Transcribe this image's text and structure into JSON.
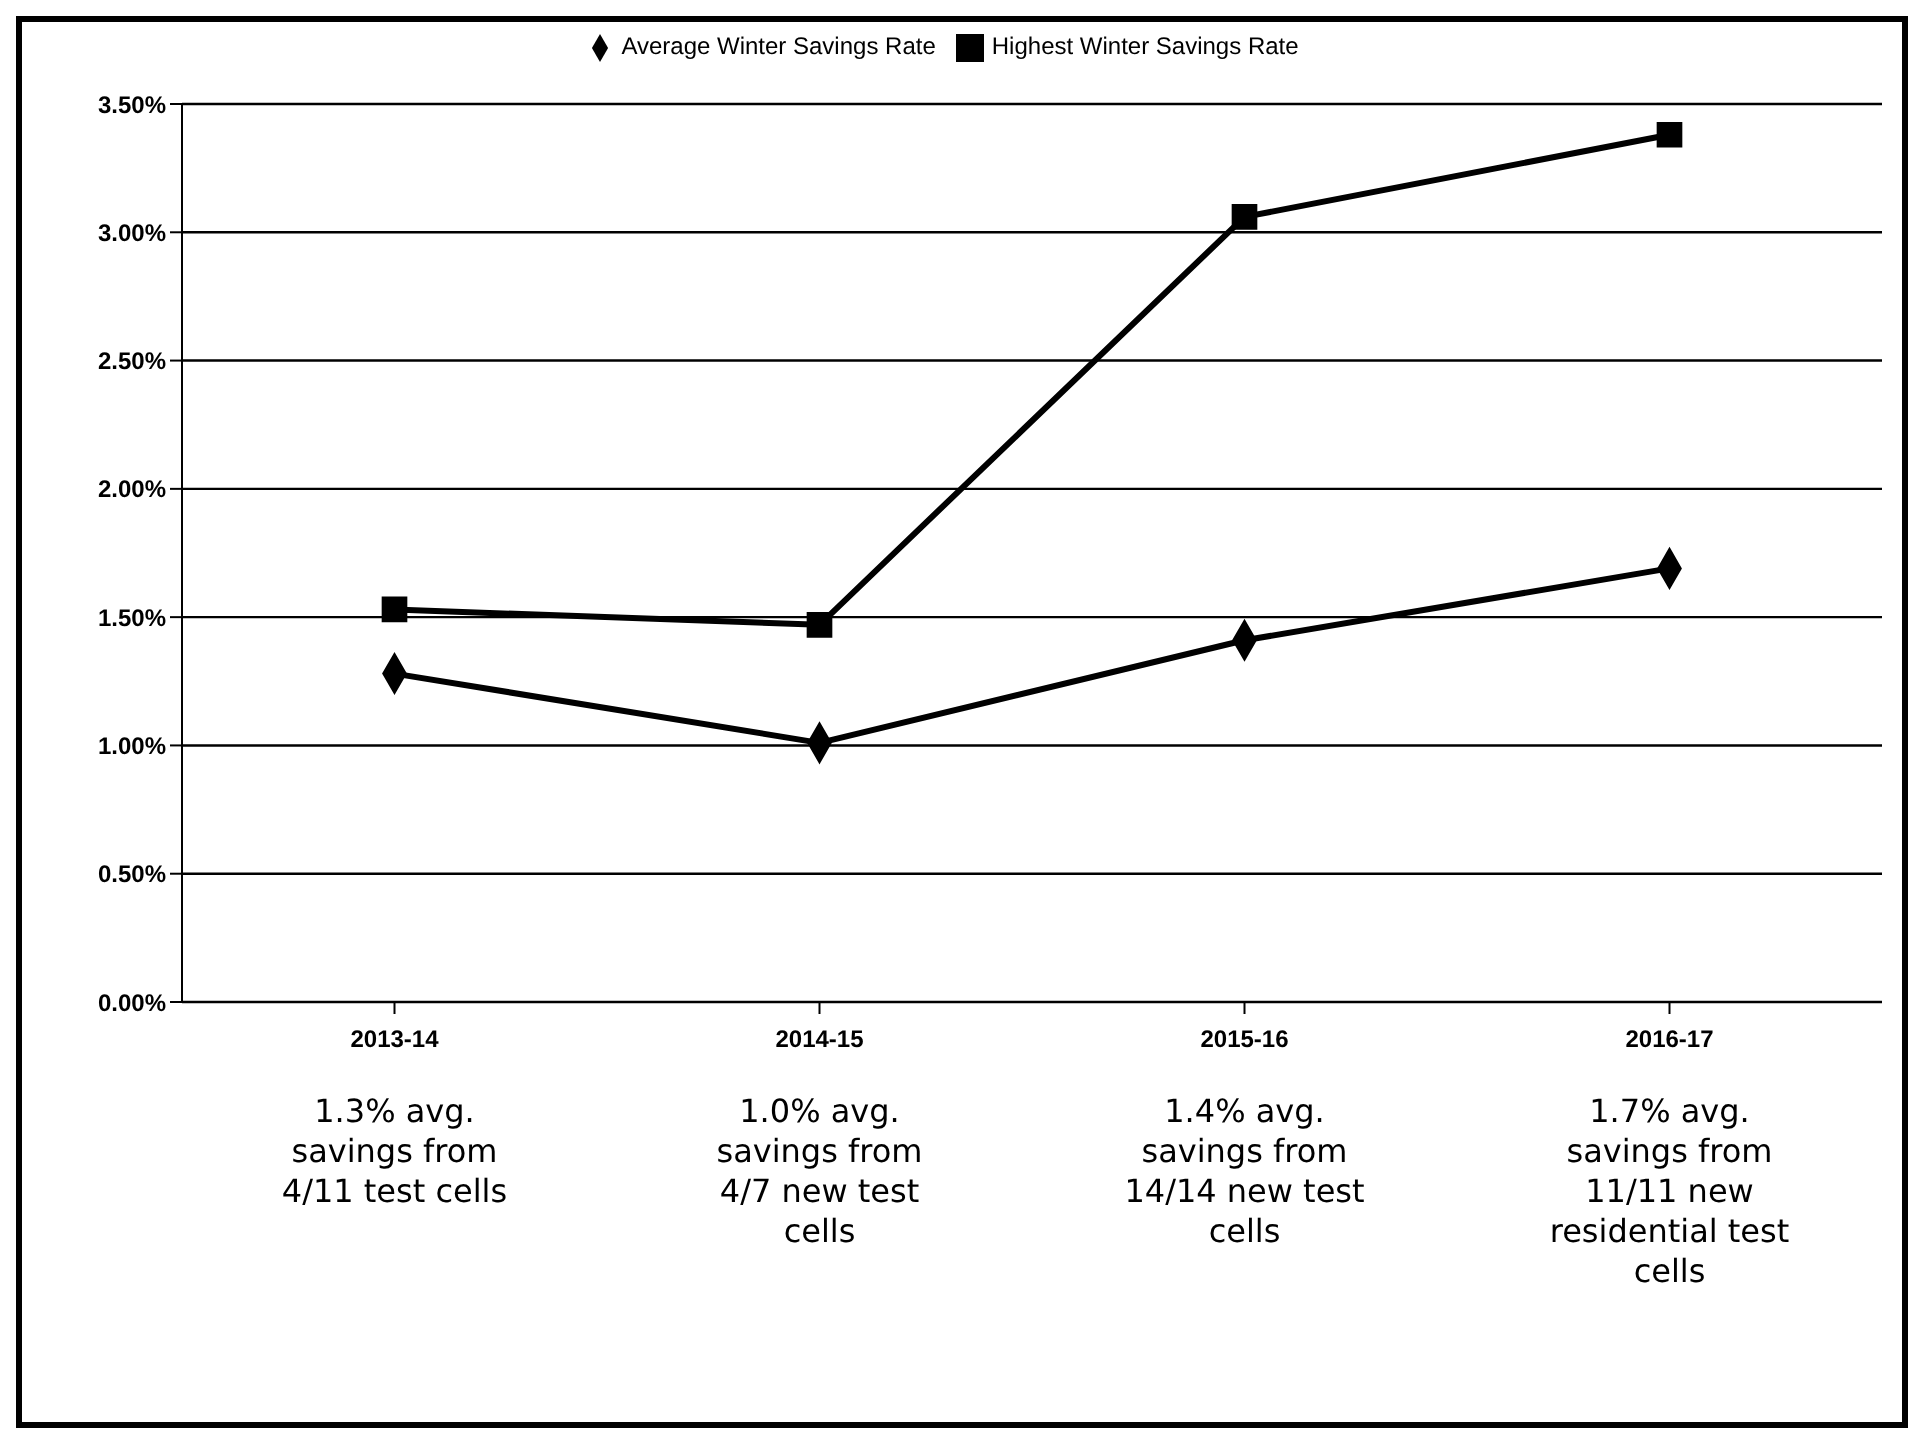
{
  "chart_data": {
    "type": "line",
    "categories": [
      "2013-14",
      "2014-15",
      "2015-16",
      "2016-17"
    ],
    "series": [
      {
        "name": "Average Winter Savings Rate",
        "color": "#000000",
        "marker": "diamond",
        "values": [
          1.28,
          1.01,
          1.41,
          1.69
        ]
      },
      {
        "name": "Highest Winter Savings Rate",
        "color": "#000000",
        "marker": "square",
        "values": [
          1.53,
          1.47,
          3.06,
          3.38
        ]
      }
    ],
    "ylim": [
      0,
      3.5
    ],
    "yticks": [
      {
        "value": 0,
        "label": "0.00%"
      },
      {
        "value": 0.5,
        "label": "0.50%"
      },
      {
        "value": 1,
        "label": "1.00%"
      },
      {
        "value": 1.5,
        "label": "1.50%"
      },
      {
        "value": 2,
        "label": "2.00%"
      },
      {
        "value": 2.5,
        "label": "2.50%"
      },
      {
        "value": 3,
        "label": "3.00%"
      },
      {
        "value": 3.5,
        "label": "3.50%"
      }
    ],
    "grid": "y",
    "legend": "top",
    "line_style": "solid",
    "annotations": [
      "1.3% avg. savings from 4/11 test cells",
      "1.0% avg. savings from 4/7 new test cells",
      "1.4% avg. savings from 14/14 new test cells",
      "1.7% avg. savings from 11/11 new residential test cells"
    ]
  }
}
